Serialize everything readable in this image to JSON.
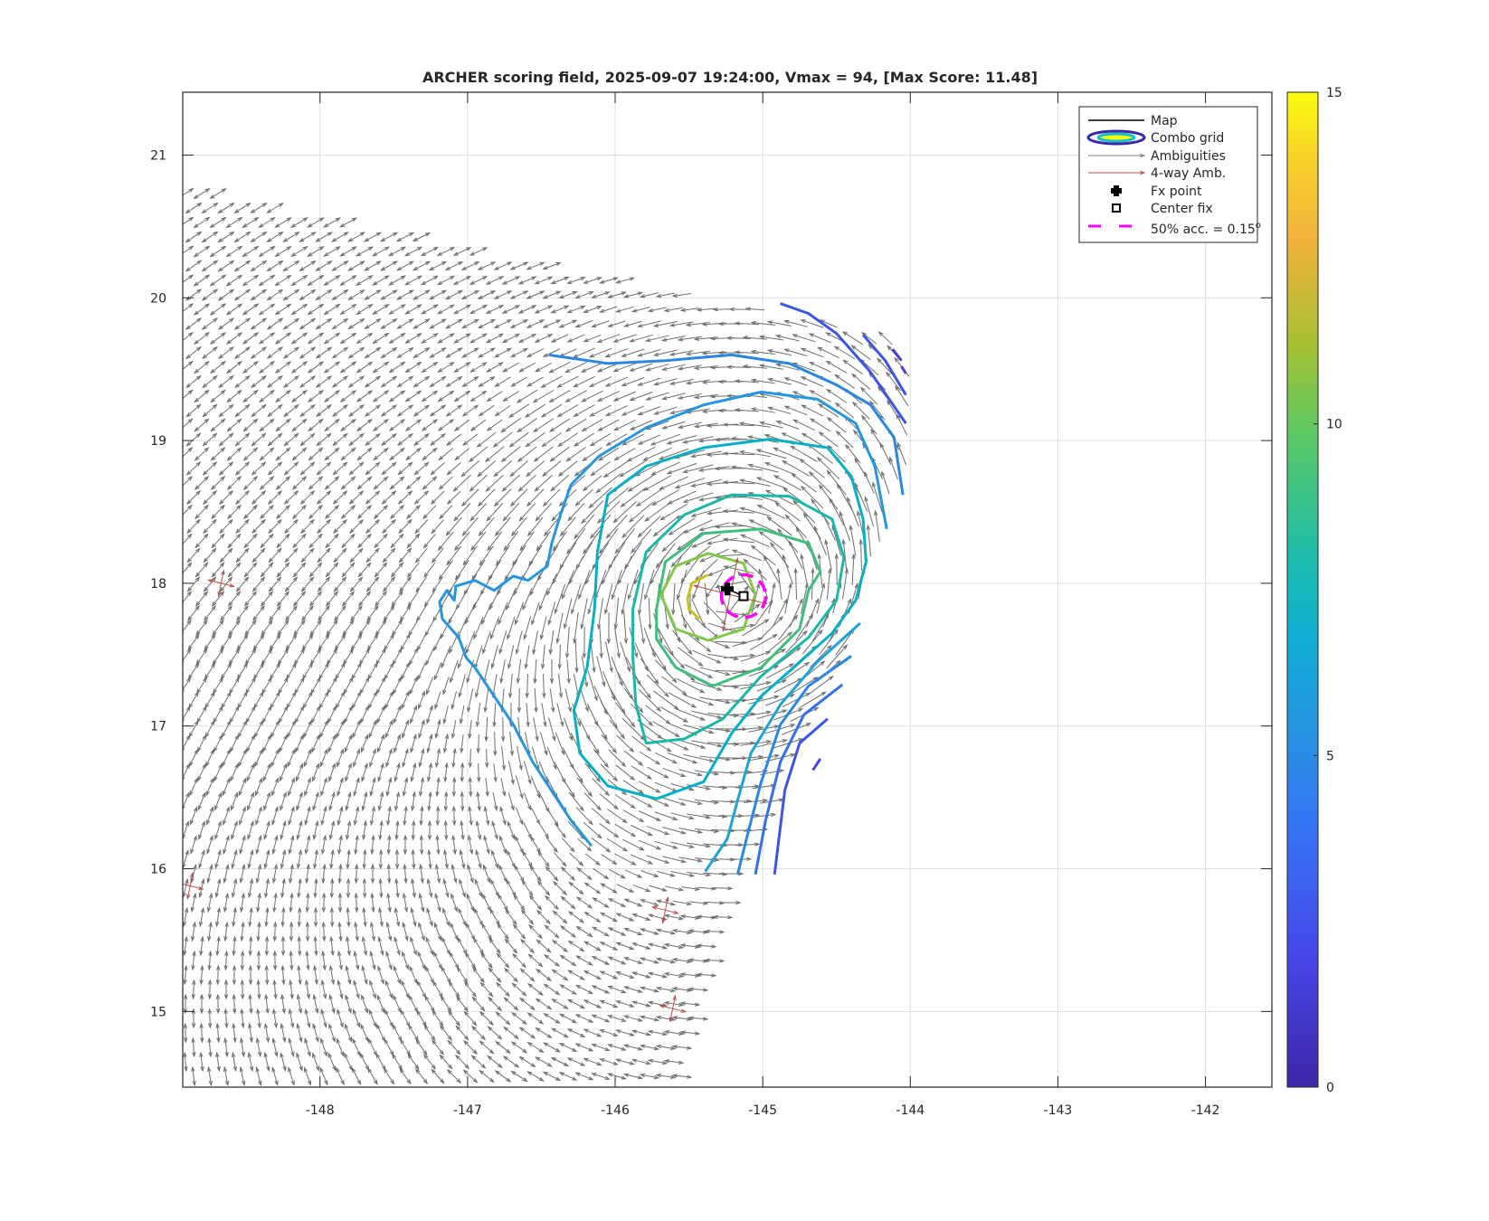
{
  "chart_data": {
    "type": "quiver+contour",
    "title": "ARCHER scoring field, 2025-09-07 19:24:00, Vmax = 94, [Max Score: 11.48]",
    "xlabel": "",
    "ylabel": "",
    "xlim": [
      -148.93,
      -141.55
    ],
    "ylim": [
      14.47,
      21.44
    ],
    "xticks": [
      -148,
      -147,
      -146,
      -145,
      -144,
      -143,
      -142
    ],
    "xtick_labels": [
      "-148",
      "-147",
      "-146",
      "-145",
      "-144",
      "-143",
      "-142"
    ],
    "yticks": [
      15,
      16,
      17,
      18,
      19,
      20,
      21
    ],
    "ytick_labels": [
      "15",
      "16",
      "17",
      "18",
      "19",
      "20",
      "21"
    ],
    "grid": true,
    "colorbar": {
      "range": [
        0,
        15
      ],
      "ticks": [
        0,
        5,
        10,
        15
      ],
      "tick_labels": [
        "0",
        "5",
        "10",
        "15"
      ],
      "colormap": "parula"
    },
    "legend": {
      "placement": "top-right",
      "entries": [
        {
          "label": "Map",
          "symbol": "line",
          "color": "#000000"
        },
        {
          "label": "Combo grid",
          "symbol": "ellipse"
        },
        {
          "label": "Ambiguities",
          "symbol": "arrow",
          "color": "#7f7f7f"
        },
        {
          "label": "4-way Amb.",
          "symbol": "arrow",
          "color": "#b5504a"
        },
        {
          "label": "Fx point",
          "symbol": "filled-cross",
          "color": "#000000"
        },
        {
          "label": "Center fix",
          "symbol": "square",
          "color": "#000000"
        },
        {
          "label": "50% acc. = 0.15",
          "superscript": "o",
          "symbol": "dashed-line",
          "color": "#ff00ff"
        }
      ]
    },
    "fx_point": {
      "lon": -145.24,
      "lat": 17.96
    },
    "center_fix": {
      "lon": -145.13,
      "lat": 17.91
    },
    "accuracy_radius_deg": 0.15,
    "vortex_center": {
      "lon": -145.2,
      "lat": 17.92
    },
    "swath_polygon": [
      [
        -148.93,
        20.79
      ],
      [
        -144.01,
        19.7
      ],
      [
        -144.01,
        18.95
      ],
      [
        -144.24,
        18.35
      ],
      [
        -144.43,
        17.55
      ],
      [
        -144.82,
        16.75
      ],
      [
        -145.17,
        15.84
      ],
      [
        -145.4,
        15.07
      ],
      [
        -145.56,
        14.47
      ],
      [
        -148.93,
        14.47
      ]
    ],
    "four_way_points": [
      [
        -148.67,
        18.0
      ],
      [
        -145.66,
        15.71
      ],
      [
        -145.61,
        15.02
      ],
      [
        -148.88,
        15.88
      ],
      [
        -145.22,
        17.92
      ]
    ],
    "contours": [
      {
        "level": 3,
        "color": "#4a3fd6",
        "points": [
          [
            -144.12,
            19.64
          ],
          [
            -144.06,
            19.56
          ]
        ]
      },
      {
        "level": 3,
        "color": "#4a3fd6",
        "points": [
          [
            -144.06,
            19.52
          ],
          [
            -144.03,
            19.47
          ]
        ]
      },
      {
        "level": 3.5,
        "color": "#4545dc",
        "points": [
          [
            -144.61,
            16.77
          ],
          [
            -144.66,
            16.69
          ]
        ]
      },
      {
        "level": 4,
        "color": "#3d55e6",
        "points": [
          [
            -144.88,
            19.96
          ],
          [
            -144.69,
            19.89
          ],
          [
            -144.5,
            19.75
          ],
          [
            -144.27,
            19.48
          ],
          [
            -144.03,
            19.12
          ]
        ]
      },
      {
        "level": 4,
        "color": "#3d55e6",
        "points": [
          [
            -144.32,
            19.74
          ],
          [
            -144.17,
            19.56
          ],
          [
            -144.03,
            19.32
          ]
        ]
      },
      {
        "level": 4,
        "color": "#3d55e6",
        "points": [
          [
            -144.56,
            17.05
          ],
          [
            -144.75,
            16.88
          ],
          [
            -144.85,
            16.55
          ],
          [
            -144.92,
            15.96
          ]
        ]
      },
      {
        "level": 4.5,
        "color": "#3470ec",
        "points": [
          [
            -144.46,
            17.29
          ],
          [
            -144.72,
            17.08
          ],
          [
            -144.88,
            16.75
          ],
          [
            -144.98,
            16.34
          ],
          [
            -145.05,
            15.96
          ]
        ]
      },
      {
        "level": 5,
        "color": "#2a86e4",
        "points": [
          [
            -146.45,
            19.6
          ],
          [
            -146.05,
            19.54
          ],
          [
            -145.66,
            19.56
          ],
          [
            -145.21,
            19.6
          ],
          [
            -144.82,
            19.54
          ],
          [
            -144.5,
            19.39
          ],
          [
            -144.27,
            19.25
          ],
          [
            -144.11,
            19.02
          ],
          [
            -144.05,
            18.62
          ]
        ]
      },
      {
        "level": 5,
        "color": "#2a86e4",
        "points": [
          [
            -144.4,
            17.49
          ],
          [
            -144.69,
            17.28
          ],
          [
            -144.88,
            17.01
          ],
          [
            -145.01,
            16.61
          ],
          [
            -145.11,
            16.21
          ],
          [
            -145.17,
            15.96
          ]
        ]
      },
      {
        "level": 5.5,
        "color": "#2596e0",
        "points": [
          [
            -146.16,
            16.16
          ],
          [
            -146.3,
            16.34
          ],
          [
            -146.56,
            16.75
          ],
          [
            -146.69,
            17.01
          ],
          [
            -146.82,
            17.21
          ],
          [
            -146.95,
            17.41
          ],
          [
            -147.01,
            17.48
          ],
          [
            -147.06,
            17.62
          ],
          [
            -147.17,
            17.75
          ],
          [
            -147.19,
            17.87
          ],
          [
            -147.14,
            17.95
          ],
          [
            -147.09,
            17.88
          ],
          [
            -147.08,
            17.98
          ],
          [
            -146.95,
            18.02
          ],
          [
            -146.82,
            17.95
          ],
          [
            -146.69,
            18.05
          ],
          [
            -146.59,
            18.02
          ],
          [
            -146.46,
            18.12
          ],
          [
            -146.43,
            18.28
          ],
          [
            -146.37,
            18.48
          ],
          [
            -146.3,
            18.69
          ],
          [
            -146.11,
            18.89
          ],
          [
            -145.79,
            19.09
          ],
          [
            -145.4,
            19.25
          ],
          [
            -145.01,
            19.34
          ],
          [
            -144.63,
            19.29
          ],
          [
            -144.37,
            19.12
          ],
          [
            -144.24,
            18.82
          ],
          [
            -144.16,
            18.38
          ]
        ]
      },
      {
        "level": 6,
        "color": "#1ea3d8",
        "points": [
          [
            -144.34,
            17.72
          ],
          [
            -144.63,
            17.45
          ],
          [
            -144.88,
            17.15
          ],
          [
            -145.08,
            16.81
          ],
          [
            -145.17,
            16.48
          ],
          [
            -145.24,
            16.21
          ],
          [
            -145.39,
            15.98
          ]
        ]
      },
      {
        "level": 7,
        "color": "#05b0c6",
        "closed": true,
        "points": [
          [
            -146.05,
            18.62
          ],
          [
            -145.79,
            18.82
          ],
          [
            -145.4,
            18.95
          ],
          [
            -144.95,
            19.01
          ],
          [
            -144.56,
            18.95
          ],
          [
            -144.4,
            18.75
          ],
          [
            -144.32,
            18.45
          ],
          [
            -144.3,
            18.15
          ],
          [
            -144.37,
            17.88
          ],
          [
            -144.53,
            17.65
          ],
          [
            -144.79,
            17.41
          ],
          [
            -145.01,
            17.21
          ],
          [
            -145.21,
            16.95
          ],
          [
            -145.4,
            16.61
          ],
          [
            -145.72,
            16.49
          ],
          [
            -146.05,
            16.58
          ],
          [
            -146.24,
            16.81
          ],
          [
            -146.28,
            17.11
          ],
          [
            -146.19,
            17.41
          ],
          [
            -146.14,
            17.82
          ],
          [
            -146.12,
            18.22
          ]
        ]
      },
      {
        "level": 8,
        "color": "#1ab8a8",
        "closed": true,
        "points": [
          [
            -145.88,
            17.82
          ],
          [
            -145.79,
            18.22
          ],
          [
            -145.53,
            18.48
          ],
          [
            -145.21,
            18.62
          ],
          [
            -144.82,
            18.61
          ],
          [
            -144.53,
            18.45
          ],
          [
            -144.45,
            18.18
          ],
          [
            -144.5,
            17.88
          ],
          [
            -144.69,
            17.62
          ],
          [
            -145.01,
            17.35
          ],
          [
            -145.27,
            17.05
          ],
          [
            -145.53,
            16.91
          ],
          [
            -145.79,
            16.88
          ],
          [
            -145.86,
            17.15
          ],
          [
            -145.88,
            17.48
          ]
        ]
      },
      {
        "level": 9,
        "color": "#3cc07a",
        "closed": true,
        "points": [
          [
            -145.72,
            17.82
          ],
          [
            -145.66,
            18.15
          ],
          [
            -145.4,
            18.35
          ],
          [
            -145.01,
            18.38
          ],
          [
            -144.69,
            18.28
          ],
          [
            -144.61,
            18.08
          ],
          [
            -144.69,
            17.95
          ],
          [
            -144.75,
            17.68
          ],
          [
            -145.01,
            17.41
          ],
          [
            -145.34,
            17.28
          ],
          [
            -145.59,
            17.41
          ],
          [
            -145.72,
            17.61
          ]
        ]
      },
      {
        "level": 10,
        "color": "#80c84a",
        "closed": true,
        "points": [
          [
            -145.69,
            17.92
          ],
          [
            -145.59,
            18.12
          ],
          [
            -145.37,
            18.21
          ],
          [
            -145.13,
            18.14
          ],
          [
            -145.05,
            17.92
          ],
          [
            -145.13,
            17.68
          ],
          [
            -145.37,
            17.6
          ],
          [
            -145.59,
            17.68
          ]
        ]
      },
      {
        "level": 11,
        "color": "#c8c020",
        "points": [
          [
            -145.37,
            18.06
          ],
          [
            -145.48,
            18.0
          ],
          [
            -145.51,
            17.89
          ],
          [
            -145.5,
            17.82
          ],
          [
            -145.43,
            17.75
          ]
        ]
      }
    ]
  }
}
